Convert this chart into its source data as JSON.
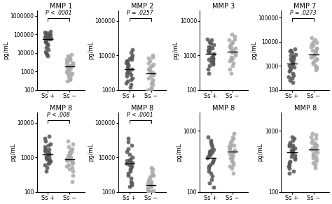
{
  "panels": [
    {
      "title": "MMP 1",
      "ylabel": "pg/mL",
      "ylim": [
        100,
        2000000
      ],
      "yticks": [
        100,
        1000,
        10000,
        100000,
        1000000
      ],
      "pvalue": "P < .0001",
      "ss_plus": [
        120000,
        150000,
        100000,
        80000,
        90000,
        110000,
        130000,
        95000,
        75000,
        85000,
        70000,
        60000,
        55000,
        50000,
        45000,
        40000,
        35000,
        30000,
        25000,
        20000,
        15000,
        12000,
        10000,
        8000,
        7000
      ],
      "ss_minus": [
        8000,
        7000,
        6000,
        5000,
        4500,
        4000,
        3500,
        3000,
        2800,
        2500,
        2200,
        2000,
        1800,
        1600,
        1400,
        1200,
        1000,
        900,
        800,
        700,
        600,
        500,
        400,
        350,
        300
      ],
      "row": 0,
      "col": 0
    },
    {
      "title": "MMP 2",
      "ylabel": "pg/mL",
      "ylim": [
        1000,
        200000
      ],
      "yticks": [
        1000,
        10000,
        100000
      ],
      "pvalue": "P = .0257",
      "ss_plus": [
        15000,
        12000,
        10000,
        9000,
        8000,
        7500,
        7000,
        6500,
        6000,
        5500,
        5000,
        4500,
        4000,
        3800,
        3500,
        3200,
        3000,
        2800,
        2500,
        2200,
        2000,
        1800,
        1600,
        1400,
        1200
      ],
      "ss_minus": [
        10000,
        9000,
        8500,
        7000,
        6000,
        5500,
        5000,
        4500,
        4000,
        3800,
        3500,
        3200,
        3000,
        2800,
        2500,
        2200,
        2000,
        1800,
        1600,
        1400,
        1200,
        1100,
        1050,
        1000,
        1000
      ],
      "row": 0,
      "col": 1
    },
    {
      "title": "MMP 3",
      "ylabel": "pg/mL",
      "ylim": [
        100,
        20000
      ],
      "yticks": [
        100,
        1000,
        10000
      ],
      "pvalue": null,
      "ss_plus": [
        3000,
        2800,
        2500,
        2200,
        2000,
        1800,
        1700,
        1600,
        1500,
        1400,
        1300,
        1200,
        1100,
        1000,
        900,
        850,
        800,
        750,
        700,
        650,
        600,
        550,
        500,
        400,
        300
      ],
      "ss_minus": [
        4000,
        3500,
        3000,
        2800,
        2500,
        2200,
        2000,
        1800,
        1700,
        1600,
        1500,
        1400,
        1300,
        1200,
        1100,
        1000,
        900,
        850,
        800,
        750,
        700,
        600,
        500,
        400,
        300
      ],
      "row": 0,
      "col": 2
    },
    {
      "title": "MMP 7",
      "ylabel": "pg/mL",
      "ylim": [
        100,
        200000
      ],
      "yticks": [
        100,
        1000,
        10000,
        100000
      ],
      "pvalue": "P = .0273",
      "ss_plus": [
        5000,
        4500,
        4000,
        3500,
        3000,
        2800,
        2500,
        2200,
        2000,
        1800,
        1600,
        1400,
        1200,
        1100,
        1000,
        900,
        800,
        700,
        600,
        500,
        400,
        350,
        300,
        250,
        200
      ],
      "ss_minus": [
        15000,
        12000,
        10000,
        9000,
        8000,
        7000,
        6000,
        5500,
        5000,
        4500,
        4000,
        3500,
        3000,
        2800,
        2500,
        2200,
        2000,
        1800,
        1600,
        1400,
        1200,
        1000,
        900,
        800,
        700
      ],
      "row": 0,
      "col": 3
    },
    {
      "title": "MMP 8",
      "ylabel": "pg/mL",
      "ylim": [
        100,
        20000
      ],
      "yticks": [
        100,
        1000,
        10000
      ],
      "pvalue": "P < .008",
      "ss_plus": [
        4000,
        3500,
        3000,
        2500,
        2200,
        2000,
        1800,
        1700,
        1600,
        1500,
        1400,
        1300,
        1200,
        1100,
        1000,
        950,
        900,
        850,
        800,
        750,
        700,
        650,
        600,
        500,
        400
      ],
      "ss_minus": [
        3000,
        2500,
        2000,
        1800,
        1600,
        1500,
        1400,
        1300,
        1200,
        1100,
        1000,
        950,
        900,
        850,
        800,
        750,
        700,
        650,
        600,
        550,
        500,
        450,
        400,
        300,
        200
      ],
      "row": 1,
      "col": 0
    },
    {
      "title": "MMP 8",
      "ylabel": "pg/mL",
      "ylim": [
        1000,
        200000
      ],
      "yticks": [
        1000,
        10000,
        100000
      ],
      "pvalue": "P < .0001",
      "ss_plus": [
        35000,
        28000,
        22000,
        18000,
        15000,
        12000,
        10000,
        9000,
        8500,
        8000,
        7500,
        7000,
        6500,
        6000,
        5500,
        5000,
        4500,
        4000,
        3500,
        3000,
        2500,
        2000,
        1800,
        1600,
        1400
      ],
      "ss_minus": [
        5000,
        4500,
        4000,
        3500,
        3200,
        3000,
        2800,
        2500,
        2200,
        2000,
        1800,
        1700,
        1600,
        1500,
        1400,
        1300,
        1200,
        1100,
        1050,
        1020,
        1010,
        1005,
        1003,
        1002,
        1001
      ],
      "row": 1,
      "col": 1
    },
    {
      "title": "MMP 8",
      "ylabel": "pg/mL",
      "ylim": [
        100,
        2000
      ],
      "yticks": [
        100,
        1000
      ],
      "pvalue": null,
      "ss_plus": [
        800,
        700,
        650,
        600,
        550,
        500,
        480,
        460,
        440,
        420,
        400,
        380,
        360,
        340,
        320,
        300,
        280,
        260,
        240,
        220,
        200,
        180,
        160,
        140,
        120
      ],
      "ss_minus": [
        900,
        800,
        750,
        700,
        650,
        600,
        580,
        560,
        540,
        520,
        500,
        480,
        460,
        440,
        420,
        400,
        380,
        360,
        340,
        320,
        300,
        280,
        260,
        240,
        200
      ],
      "row": 1,
      "col": 2
    },
    {
      "title": "MMP 8",
      "ylabel": "pg/mL",
      "ylim": [
        100,
        2000
      ],
      "yticks": [
        100,
        1000
      ],
      "pvalue": null,
      "ss_plus": [
        800,
        750,
        700,
        650,
        600,
        580,
        560,
        540,
        520,
        500,
        480,
        460,
        440,
        420,
        400,
        380,
        360,
        340,
        320,
        300,
        280,
        260,
        240,
        220,
        200
      ],
      "ss_minus": [
        900,
        850,
        800,
        750,
        700,
        650,
        620,
        600,
        580,
        560,
        540,
        520,
        500,
        480,
        460,
        440,
        420,
        400,
        380,
        360,
        340,
        320,
        300,
        280,
        250
      ],
      "row": 1,
      "col": 3
    }
  ],
  "dot_color_plus": "#555555",
  "dot_color_minus": "#aaaaaa",
  "dot_size": 18,
  "dot_alpha": 0.85,
  "background_color": "#ffffff",
  "xlabel_plus": "Ss +",
  "xlabel_minus": "Ss −",
  "title_fontsize": 7,
  "label_fontsize": 6,
  "tick_fontsize": 5.5,
  "pvalue_fontsize": 5.5
}
